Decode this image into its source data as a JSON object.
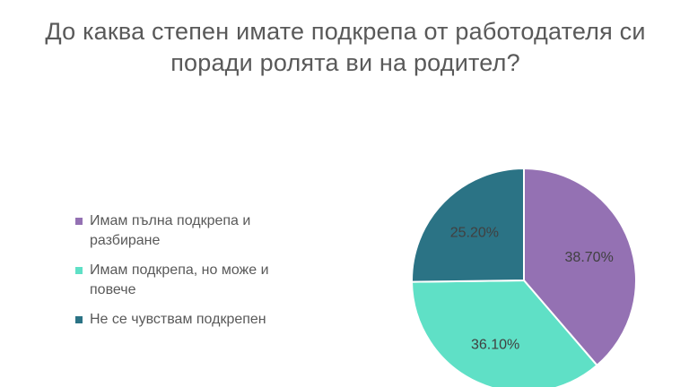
{
  "chart_data": {
    "type": "pie",
    "title": "До каква степен имате подкрепа от работодателя си поради ролята ви на родител?",
    "slices": [
      {
        "label": "Имам пълна подкрепа и разбиране",
        "value": 38.7,
        "display": "38.70%",
        "color": "#9471b3"
      },
      {
        "label": "Имам подкрепа, но може и повече",
        "value": 36.1,
        "display": "36.10%",
        "color": "#5fe0c6"
      },
      {
        "label": "Не се чувствам подкрепен",
        "value": 25.2,
        "display": "25.20%",
        "color": "#2b7385"
      }
    ],
    "legend_position": "left"
  }
}
